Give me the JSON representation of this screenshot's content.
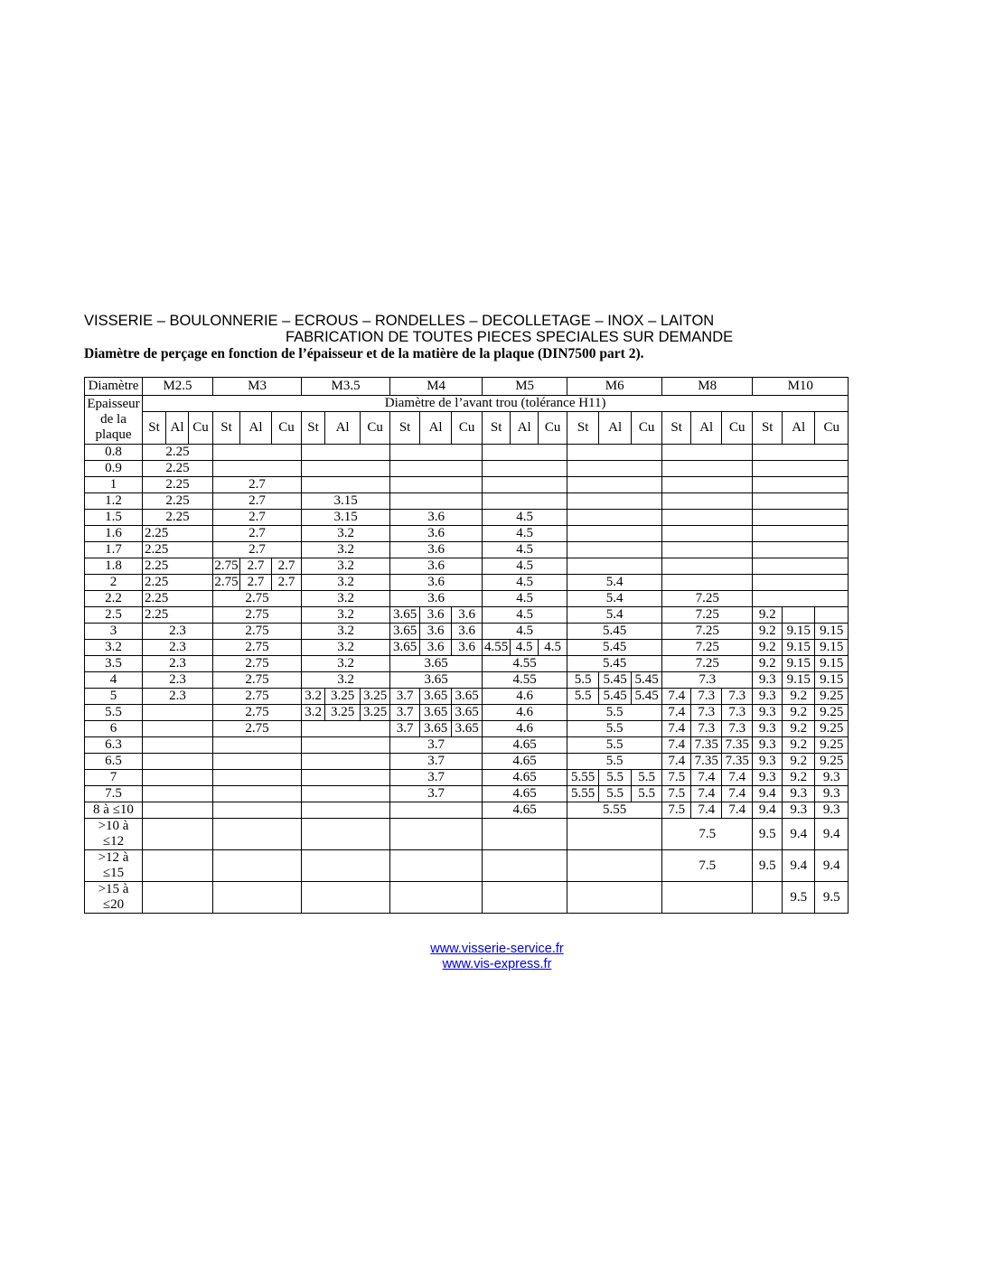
{
  "header": {
    "line1": "VISSERIE – BOULONNERIE – ECROUS – RONDELLES – DECOLLETAGE – INOX – LAITON",
    "line2": "FABRICATION DE TOUTES PIECES SPECIALES SUR DEMANDE",
    "line3": "Diamètre de perçage en fonction de l’épaisseur et de la matière de la plaque (DIN7500 part 2)."
  },
  "table": {
    "corner_label": "Diamètre",
    "row_header_label": "Epaisseur\nde la\nplaque",
    "subheader": "Diamètre de l’avant trou (tolérance H11)",
    "groups": [
      "M2.5",
      "M3",
      "M3.5",
      "M4",
      "M5",
      "M6",
      "M8",
      "M10"
    ],
    "materials": [
      "St",
      "Al",
      "Cu"
    ],
    "rows": [
      {
        "label": "0.8",
        "cells": [
          "2.25",
          null,
          null,
          null,
          null,
          null,
          null,
          null
        ]
      },
      {
        "label": "0.9",
        "cells": [
          "2.25",
          null,
          null,
          null,
          null,
          null,
          null,
          null
        ]
      },
      {
        "label": "1",
        "cells": [
          "2.25",
          "2.7",
          null,
          null,
          null,
          null,
          null,
          null
        ]
      },
      {
        "label": "1.2",
        "cells": [
          "2.25",
          "2.7",
          "3.15",
          null,
          null,
          null,
          null,
          null
        ]
      },
      {
        "label": "1.5",
        "cells": [
          "2.25",
          "2.7",
          "3.15",
          "3.6",
          "4.5",
          null,
          null,
          null
        ]
      },
      {
        "label": "1.6",
        "cells": [
          {
            "v": "2.25",
            "left": true
          },
          "2.7",
          "3.2",
          "3.6",
          "4.5",
          null,
          null,
          null
        ]
      },
      {
        "label": "1.7",
        "cells": [
          {
            "v": "2.25",
            "left": true
          },
          "2.7",
          "3.2",
          "3.6",
          "4.5",
          null,
          null,
          null
        ]
      },
      {
        "label": "1.8",
        "cells": [
          {
            "v": "2.25",
            "left": true
          },
          [
            "2.75",
            "2.7",
            "2.7"
          ],
          "3.2",
          "3.6",
          "4.5",
          null,
          null,
          null
        ]
      },
      {
        "label": "2",
        "cells": [
          {
            "v": "2.25",
            "left": true
          },
          [
            "2.75",
            "2.7",
            "2.7"
          ],
          "3.2",
          "3.6",
          "4.5",
          "5.4",
          null,
          null
        ]
      },
      {
        "label": "2.2",
        "cells": [
          {
            "v": "2.25",
            "left": true
          },
          "2.75",
          "3.2",
          "3.6",
          "4.5",
          "5.4",
          "7.25",
          null
        ]
      },
      {
        "label": "2.5",
        "cells": [
          {
            "v": "2.25",
            "left": true
          },
          "2.75",
          "3.2",
          [
            "3.65",
            "3.6",
            "3.6"
          ],
          "4.5",
          "5.4",
          "7.25",
          [
            "9.2",
            "",
            ""
          ]
        ]
      },
      {
        "label": "3",
        "cells": [
          "2.3",
          "2.75",
          "3.2",
          [
            "3.65",
            "3.6",
            "3.6"
          ],
          "4.5",
          "5.45",
          "7.25",
          [
            "9.2",
            "9.15",
            "9.15"
          ]
        ]
      },
      {
        "label": "3.2",
        "cells": [
          "2.3",
          "2.75",
          "3.2",
          [
            "3.65",
            "3.6",
            "3.6"
          ],
          [
            "4.55",
            "4.5",
            "4.5"
          ],
          "5.45",
          "7.25",
          [
            "9.2",
            "9.15",
            "9.15"
          ]
        ]
      },
      {
        "label": "3.5",
        "cells": [
          "2.3",
          "2.75",
          "3.2",
          "3.65",
          "4.55",
          "5.45",
          "7.25",
          [
            "9.2",
            "9.15",
            "9.15"
          ]
        ]
      },
      {
        "label": "4",
        "cells": [
          "2.3",
          "2.75",
          "3.2",
          "3.65",
          "4.55",
          [
            "5.5",
            "5.45",
            "5.45"
          ],
          "7.3",
          [
            "9.3",
            "9.15",
            "9.15"
          ]
        ]
      },
      {
        "label": "5",
        "cells": [
          "2.3",
          "2.75",
          [
            "3.2",
            "3.25",
            "3.25"
          ],
          [
            "3.7",
            "3.65",
            "3.65"
          ],
          "4.6",
          [
            "5.5",
            "5.45",
            "5.45"
          ],
          [
            "7.4",
            "7.3",
            "7.3"
          ],
          [
            "9.3",
            "9.2",
            "9.25"
          ]
        ]
      },
      {
        "label": "5.5",
        "cells": [
          null,
          "2.75",
          [
            "3.2",
            "3.25",
            "3.25"
          ],
          [
            "3.7",
            "3.65",
            "3.65"
          ],
          "4.6",
          "5.5",
          [
            "7.4",
            "7.3",
            "7.3"
          ],
          [
            "9.3",
            "9.2",
            "9.25"
          ]
        ]
      },
      {
        "label": "6",
        "cells": [
          null,
          "2.75",
          null,
          [
            "3.7",
            "3.65",
            "3.65"
          ],
          "4.6",
          "5.5",
          [
            "7.4",
            "7.3",
            "7.3"
          ],
          [
            "9.3",
            "9.2",
            "9.25"
          ]
        ]
      },
      {
        "label": "6.3",
        "cells": [
          null,
          null,
          null,
          "3.7",
          "4.65",
          "5.5",
          [
            "7.4",
            "7.35",
            "7.35"
          ],
          [
            "9.3",
            "9.2",
            "9.25"
          ]
        ]
      },
      {
        "label": "6.5",
        "cells": [
          null,
          null,
          null,
          "3.7",
          "4.65",
          "5.5",
          [
            "7.4",
            "7.35",
            "7.35"
          ],
          [
            "9.3",
            "9.2",
            "9.25"
          ]
        ]
      },
      {
        "label": "7",
        "cells": [
          null,
          null,
          null,
          "3.7",
          "4.65",
          [
            "5.55",
            "5.5",
            "5.5"
          ],
          [
            "7.5",
            "7.4",
            "7.4"
          ],
          [
            "9.3",
            "9.2",
            "9.3"
          ]
        ]
      },
      {
        "label": "7.5",
        "cells": [
          null,
          null,
          null,
          "3.7",
          "4.65",
          [
            "5.55",
            "5.5",
            "5.5"
          ],
          [
            "7.5",
            "7.4",
            "7.4"
          ],
          [
            "9.4",
            "9.3",
            "9.3"
          ]
        ]
      },
      {
        "label": "8 à ≤10",
        "cells": [
          null,
          null,
          null,
          null,
          "4.65",
          "5.55",
          [
            "7.5",
            "7.4",
            "7.4"
          ],
          [
            "9.4",
            "9.3",
            "9.3"
          ]
        ]
      },
      {
        "label": ">10 à\n≤12",
        "cells": [
          null,
          null,
          null,
          null,
          null,
          null,
          "7.5",
          [
            "9.5",
            "9.4",
            "9.4"
          ]
        ]
      },
      {
        "label": ">12 à\n≤15",
        "cells": [
          null,
          null,
          null,
          null,
          null,
          null,
          "7.5",
          [
            "9.5",
            "9.4",
            "9.4"
          ]
        ]
      },
      {
        "label": ">15 à\n≤20",
        "cells": [
          null,
          null,
          null,
          null,
          null,
          null,
          null,
          [
            "",
            "9.5",
            "9.5"
          ]
        ]
      }
    ]
  },
  "footer": {
    "links": [
      "www.visserie-service.fr",
      "www.vis-express.fr"
    ]
  },
  "colors": {
    "link": "#0000e0",
    "text": "#000000",
    "border": "#000000",
    "background": "#ffffff"
  }
}
